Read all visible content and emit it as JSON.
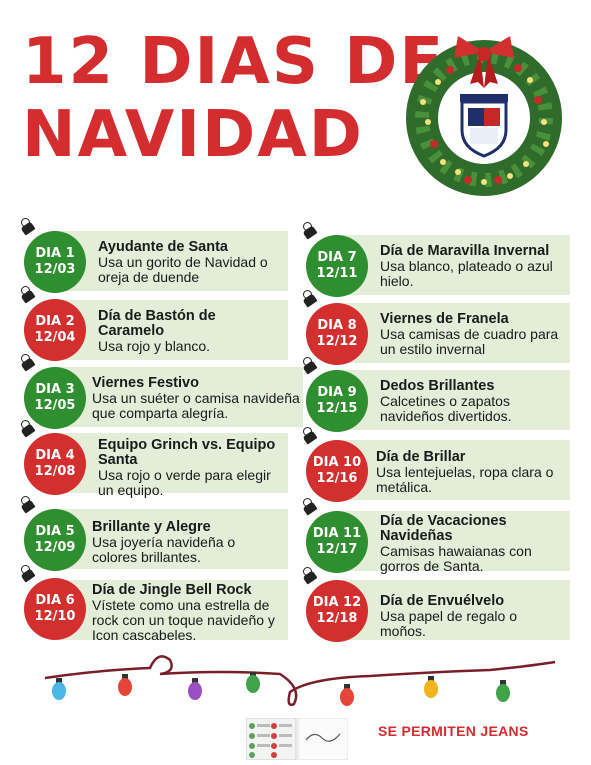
{
  "title": {
    "line1": "12 DIAS DE",
    "line2": "NAVIDAD"
  },
  "colors": {
    "red": "#d32f2f",
    "green": "#2f8e2f",
    "card": "#e3edd8"
  },
  "days": [
    {
      "day": "DIA 1",
      "date": "12/03",
      "name": "Ayudante de Santa",
      "desc": "Usa un gorito de Navidad o oreja de duende"
    },
    {
      "day": "DIA 2",
      "date": "12/04",
      "name": "Día de Bastón de Caramelo",
      "desc": " Usa rojo y blanco."
    },
    {
      "day": "DIA 3",
      "date": "12/05",
      "name": "Viernes Festivo",
      "desc": "Usa un suéter o camisa navideña que comparta alegría."
    },
    {
      "day": "DIA 4",
      "date": "12/08",
      "name": "Equipo Grinch vs. Equipo Santa",
      "desc": "Usa rojo o verde para elegir un equipo."
    },
    {
      "day": "DIA 5",
      "date": "12/09",
      "name": "Brillante y Alegre",
      "desc": " Usa joyería navideña o colores brillantes."
    },
    {
      "day": "DIA 6",
      "date": "12/10",
      "name": "Día de Jingle Bell Rock",
      "desc": " Vístete como una estrella de rock con un toque navideño y Icon cascabeles."
    },
    {
      "day": "DIA 7",
      "date": "12/11",
      "name": "Día de Maravilla Invernal",
      "desc": "Usa blanco, plateado o azul hielo."
    },
    {
      "day": "DIA 8",
      "date": "12/12",
      "name": "Viernes de Franela",
      "desc": "Usa camisas de cuadro para un estilo invernal"
    },
    {
      "day": "DIA 9",
      "date": "12/15",
      "name": "Dedos Brillantes",
      "desc": "Calcetines o zapatos navideños divertidos."
    },
    {
      "day": "DIA 10",
      "date": "12/16",
      "name": "Día de Brillar",
      "desc": "Usa lentejuelas, ropa clara o metálica."
    },
    {
      "day": "DIA 11",
      "date": "12/17",
      "name": "Día de Vacaciones Navideñas",
      "desc": " Camisas hawaianas con gorros de Santa."
    },
    {
      "day": "DIA 12",
      "date": "12/18",
      "name": "Día de Envuélvelo",
      "desc": "Usa papel de regalo o moños."
    }
  ],
  "footer": {
    "note": "SE PERMITEN JEANS"
  }
}
